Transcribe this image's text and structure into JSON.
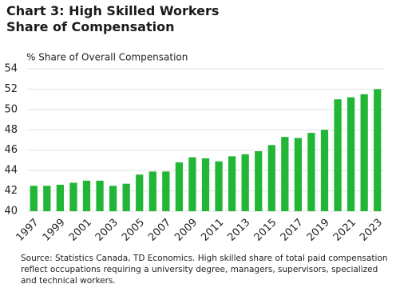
{
  "chart_data": {
    "type": "bar",
    "title": "Chart 3: High Skilled Workers Share of Compensation",
    "y_label": "% Share of Overall Compensation",
    "source": "Source: Statistics Canada, TD Economics. High skilled share of total paid compensation reflect occupations requiring a university degree, managers, supervisors, specialized and technical workers.",
    "categories": [
      "1997",
      null,
      "1999",
      null,
      "2001",
      null,
      "2003",
      null,
      "2005",
      null,
      "2007",
      null,
      "2009",
      null,
      "2011",
      null,
      "2013",
      null,
      "2015",
      null,
      "2017",
      null,
      "2019",
      null,
      "2021",
      null,
      "2023"
    ],
    "values": [
      42.5,
      42.5,
      42.6,
      42.8,
      43.0,
      43.0,
      42.5,
      42.7,
      43.6,
      43.9,
      43.9,
      44.8,
      45.3,
      45.2,
      44.9,
      45.4,
      45.6,
      45.9,
      46.5,
      47.3,
      47.2,
      47.7,
      48.0,
      51.0,
      51.2,
      51.5,
      52.0
    ],
    "color": "#22b636",
    "ylim": [
      40,
      54
    ],
    "yticks": [
      40,
      42,
      44,
      46,
      48,
      50,
      52,
      54
    ],
    "grid": true
  }
}
